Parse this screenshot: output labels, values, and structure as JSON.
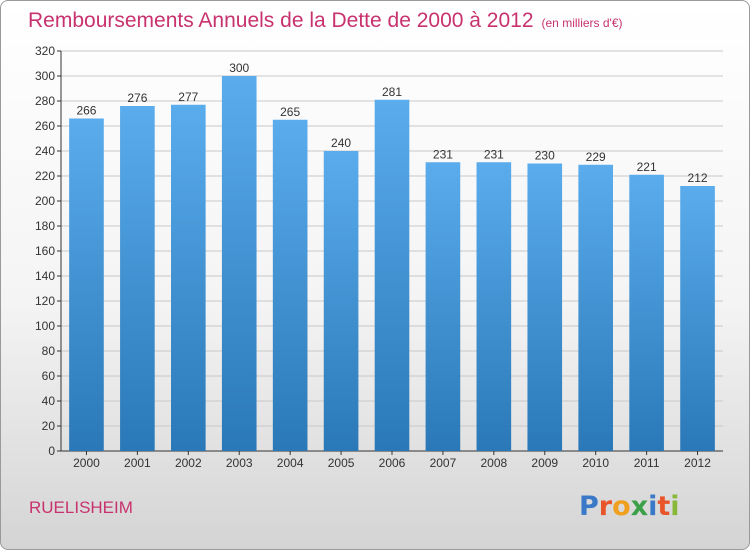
{
  "header": {
    "title": "Remboursements Annuels de la Dette de 2000 à 2012",
    "unit": "(en milliers d'€)"
  },
  "footer": {
    "city": "RUELISHEIM",
    "logo_letters": [
      {
        "ch": "P",
        "color": "#3a78c8"
      },
      {
        "ch": "r",
        "color": "#e8552a"
      },
      {
        "ch": "o",
        "color": "#f0a020"
      },
      {
        "ch": "x",
        "color": "#3aa04a"
      },
      {
        "ch": "i",
        "color": "#3a78c8"
      },
      {
        "ch": "t",
        "color": "#e8552a"
      },
      {
        "ch": "i",
        "color": "#88b83a"
      }
    ]
  },
  "colors": {
    "bar_top": "#5aacec",
    "bar_bottom": "#2a78b8",
    "grid": "#c8c8c8",
    "axis": "#333333",
    "title": "#c8326e"
  },
  "chart_data": {
    "type": "bar",
    "categories": [
      "2000",
      "2001",
      "2002",
      "2003",
      "2004",
      "2005",
      "2006",
      "2007",
      "2008",
      "2009",
      "2010",
      "2011",
      "2012"
    ],
    "values": [
      266,
      276,
      277,
      300,
      265,
      240,
      281,
      231,
      231,
      230,
      229,
      221,
      212
    ],
    "title": "Remboursements Annuels de la Dette de 2000 à 2012",
    "subtitle": "(en milliers d'€)",
    "xlabel": "",
    "ylabel": "",
    "ylim": [
      0,
      320
    ],
    "ytick_step": 20,
    "grid": true,
    "legend": "none"
  }
}
